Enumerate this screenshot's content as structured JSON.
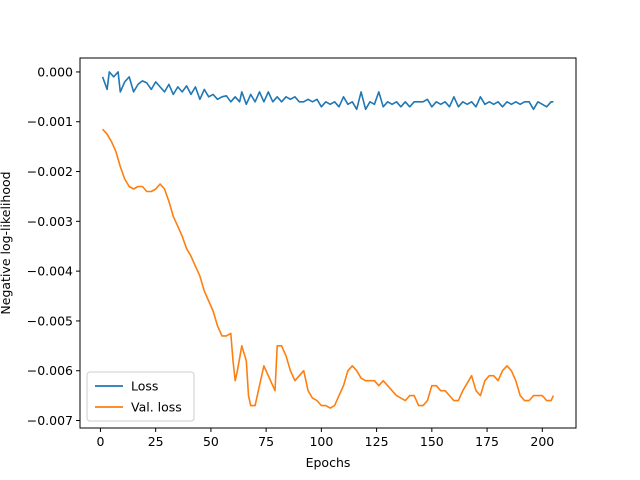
{
  "chart_data": {
    "type": "line",
    "title": "",
    "xlabel": "Epochs",
    "ylabel": "Negative log-likelihood",
    "xlim": [
      -9.25,
      215.25
    ],
    "ylim": [
      -0.00715,
      0.00028
    ],
    "xticks": [
      0,
      25,
      50,
      75,
      100,
      125,
      150,
      175,
      200
    ],
    "xtick_labels": [
      "0",
      "25",
      "50",
      "75",
      "100",
      "125",
      "150",
      "175",
      "200"
    ],
    "yticks": [
      0.0,
      -0.001,
      -0.002,
      -0.003,
      -0.004,
      -0.005,
      -0.006,
      -0.007
    ],
    "ytick_labels": [
      "0.000",
      "−0.001",
      "−0.002",
      "−0.003",
      "−0.004",
      "−0.005",
      "−0.006",
      "−0.007"
    ],
    "grid": false,
    "legend_position": "lower-left",
    "series": [
      {
        "name": "Loss",
        "color": "#1f77b4",
        "points": [
          [
            1,
            -0.0001
          ],
          [
            3,
            -0.00035
          ],
          [
            4,
            0.0
          ],
          [
            6,
            -0.0001
          ],
          [
            8,
            -0.0
          ],
          [
            9,
            -0.0004
          ],
          [
            11,
            -0.0002
          ],
          [
            13,
            -0.0001
          ],
          [
            15,
            -0.0004
          ],
          [
            17,
            -0.00025
          ],
          [
            19,
            -0.00018
          ],
          [
            21,
            -0.00022
          ],
          [
            23,
            -0.00035
          ],
          [
            25,
            -0.0002
          ],
          [
            27,
            -0.0003
          ],
          [
            29,
            -0.0004
          ],
          [
            31,
            -0.00025
          ],
          [
            33,
            -0.00045
          ],
          [
            35,
            -0.0003
          ],
          [
            37,
            -0.0004
          ],
          [
            39,
            -0.00028
          ],
          [
            41,
            -0.00045
          ],
          [
            43,
            -0.0003
          ],
          [
            45,
            -0.00055
          ],
          [
            47,
            -0.00035
          ],
          [
            49,
            -0.0005
          ],
          [
            51,
            -0.00045
          ],
          [
            53,
            -0.00055
          ],
          [
            55,
            -0.0005
          ],
          [
            57,
            -0.00048
          ],
          [
            59,
            -0.0006
          ],
          [
            61,
            -0.0005
          ],
          [
            63,
            -0.0006
          ],
          [
            64,
            -0.0004
          ],
          [
            66,
            -0.00065
          ],
          [
            68,
            -0.00045
          ],
          [
            70,
            -0.0006
          ],
          [
            72,
            -0.0004
          ],
          [
            74,
            -0.0006
          ],
          [
            76,
            -0.0004
          ],
          [
            78,
            -0.0006
          ],
          [
            80,
            -0.0005
          ],
          [
            82,
            -0.0006
          ],
          [
            84,
            -0.0005
          ],
          [
            86,
            -0.00055
          ],
          [
            88,
            -0.0005
          ],
          [
            90,
            -0.0006
          ],
          [
            92,
            -0.0006
          ],
          [
            94,
            -0.00055
          ],
          [
            96,
            -0.0006
          ],
          [
            98,
            -0.00055
          ],
          [
            100,
            -0.0007
          ],
          [
            102,
            -0.0006
          ],
          [
            104,
            -0.00065
          ],
          [
            106,
            -0.0006
          ],
          [
            108,
            -0.0007
          ],
          [
            110,
            -0.0005
          ],
          [
            112,
            -0.00065
          ],
          [
            114,
            -0.0006
          ],
          [
            116,
            -0.00075
          ],
          [
            118,
            -0.0004
          ],
          [
            120,
            -0.00075
          ],
          [
            122,
            -0.0006
          ],
          [
            124,
            -0.00065
          ],
          [
            126,
            -0.0004
          ],
          [
            128,
            -0.0007
          ],
          [
            130,
            -0.0006
          ],
          [
            132,
            -0.00065
          ],
          [
            134,
            -0.0006
          ],
          [
            136,
            -0.0007
          ],
          [
            138,
            -0.0006
          ],
          [
            140,
            -0.0007
          ],
          [
            142,
            -0.0006
          ],
          [
            144,
            -0.0006
          ],
          [
            146,
            -0.0006
          ],
          [
            148,
            -0.00055
          ],
          [
            150,
            -0.0007
          ],
          [
            152,
            -0.0006
          ],
          [
            154,
            -0.00065
          ],
          [
            156,
            -0.0006
          ],
          [
            158,
            -0.0007
          ],
          [
            160,
            -0.0005
          ],
          [
            162,
            -0.0007
          ],
          [
            164,
            -0.0006
          ],
          [
            166,
            -0.00065
          ],
          [
            168,
            -0.0006
          ],
          [
            170,
            -0.0007
          ],
          [
            172,
            -0.0005
          ],
          [
            174,
            -0.00065
          ],
          [
            176,
            -0.0006
          ],
          [
            178,
            -0.00065
          ],
          [
            180,
            -0.0006
          ],
          [
            182,
            -0.0007
          ],
          [
            184,
            -0.0006
          ],
          [
            186,
            -0.00065
          ],
          [
            188,
            -0.0006
          ],
          [
            190,
            -0.00065
          ],
          [
            192,
            -0.0006
          ],
          [
            194,
            -0.0006
          ],
          [
            196,
            -0.00075
          ],
          [
            198,
            -0.0006
          ],
          [
            200,
            -0.00065
          ],
          [
            202,
            -0.0007
          ],
          [
            204,
            -0.0006
          ],
          [
            205,
            -0.0006
          ]
        ]
      },
      {
        "name": "Val. loss",
        "color": "#ff7f0e",
        "points": [
          [
            1,
            -0.00115
          ],
          [
            3,
            -0.00125
          ],
          [
            5,
            -0.0014
          ],
          [
            7,
            -0.0016
          ],
          [
            9,
            -0.0019
          ],
          [
            11,
            -0.00215
          ],
          [
            13,
            -0.0023
          ],
          [
            15,
            -0.00235
          ],
          [
            17,
            -0.0023
          ],
          [
            19,
            -0.0023
          ],
          [
            21,
            -0.0024
          ],
          [
            23,
            -0.0024
          ],
          [
            25,
            -0.00235
          ],
          [
            27,
            -0.00225
          ],
          [
            29,
            -0.00235
          ],
          [
            31,
            -0.0026
          ],
          [
            33,
            -0.0029
          ],
          [
            35,
            -0.0031
          ],
          [
            37,
            -0.0033
          ],
          [
            39,
            -0.00355
          ],
          [
            41,
            -0.0037
          ],
          [
            43,
            -0.0039
          ],
          [
            45,
            -0.0041
          ],
          [
            47,
            -0.0044
          ],
          [
            49,
            -0.0046
          ],
          [
            51,
            -0.0048
          ],
          [
            53,
            -0.0051
          ],
          [
            55,
            -0.0053
          ],
          [
            57,
            -0.0053
          ],
          [
            59,
            -0.00525
          ],
          [
            60,
            -0.0058
          ],
          [
            61,
            -0.0062
          ],
          [
            62,
            -0.006
          ],
          [
            64,
            -0.0055
          ],
          [
            66,
            -0.0058
          ],
          [
            67,
            -0.0065
          ],
          [
            68,
            -0.0067
          ],
          [
            70,
            -0.0067
          ],
          [
            71,
            -0.0065
          ],
          [
            73,
            -0.0061
          ],
          [
            74,
            -0.0059
          ],
          [
            76,
            -0.0061
          ],
          [
            78,
            -0.0063
          ],
          [
            79,
            -0.0064
          ],
          [
            80,
            -0.0055
          ],
          [
            82,
            -0.0055
          ],
          [
            84,
            -0.0057
          ],
          [
            86,
            -0.006
          ],
          [
            88,
            -0.0062
          ],
          [
            90,
            -0.0061
          ],
          [
            92,
            -0.006
          ],
          [
            94,
            -0.0064
          ],
          [
            96,
            -0.00655
          ],
          [
            98,
            -0.0066
          ],
          [
            100,
            -0.0067
          ],
          [
            102,
            -0.0067
          ],
          [
            104,
            -0.00675
          ],
          [
            106,
            -0.0067
          ],
          [
            108,
            -0.0065
          ],
          [
            110,
            -0.0063
          ],
          [
            112,
            -0.006
          ],
          [
            114,
            -0.0059
          ],
          [
            116,
            -0.006
          ],
          [
            118,
            -0.00615
          ],
          [
            120,
            -0.0062
          ],
          [
            122,
            -0.0062
          ],
          [
            124,
            -0.0062
          ],
          [
            126,
            -0.0063
          ],
          [
            128,
            -0.0062
          ],
          [
            130,
            -0.0063
          ],
          [
            132,
            -0.0064
          ],
          [
            134,
            -0.0065
          ],
          [
            136,
            -0.00655
          ],
          [
            138,
            -0.0066
          ],
          [
            140,
            -0.0065
          ],
          [
            142,
            -0.0065
          ],
          [
            144,
            -0.0067
          ],
          [
            146,
            -0.0067
          ],
          [
            148,
            -0.0066
          ],
          [
            150,
            -0.0063
          ],
          [
            152,
            -0.0063
          ],
          [
            154,
            -0.0064
          ],
          [
            156,
            -0.0064
          ],
          [
            158,
            -0.0065
          ],
          [
            160,
            -0.0066
          ],
          [
            162,
            -0.0066
          ],
          [
            164,
            -0.0064
          ],
          [
            166,
            -0.00625
          ],
          [
            168,
            -0.0061
          ],
          [
            170,
            -0.0064
          ],
          [
            172,
            -0.0065
          ],
          [
            174,
            -0.0062
          ],
          [
            176,
            -0.0061
          ],
          [
            178,
            -0.0061
          ],
          [
            180,
            -0.0062
          ],
          [
            182,
            -0.006
          ],
          [
            184,
            -0.0059
          ],
          [
            186,
            -0.006
          ],
          [
            188,
            -0.0062
          ],
          [
            190,
            -0.0065
          ],
          [
            192,
            -0.0066
          ],
          [
            194,
            -0.0066
          ],
          [
            196,
            -0.0065
          ],
          [
            198,
            -0.0065
          ],
          [
            200,
            -0.0065
          ],
          [
            202,
            -0.0066
          ],
          [
            204,
            -0.0066
          ],
          [
            205,
            -0.0065
          ]
        ]
      }
    ]
  }
}
